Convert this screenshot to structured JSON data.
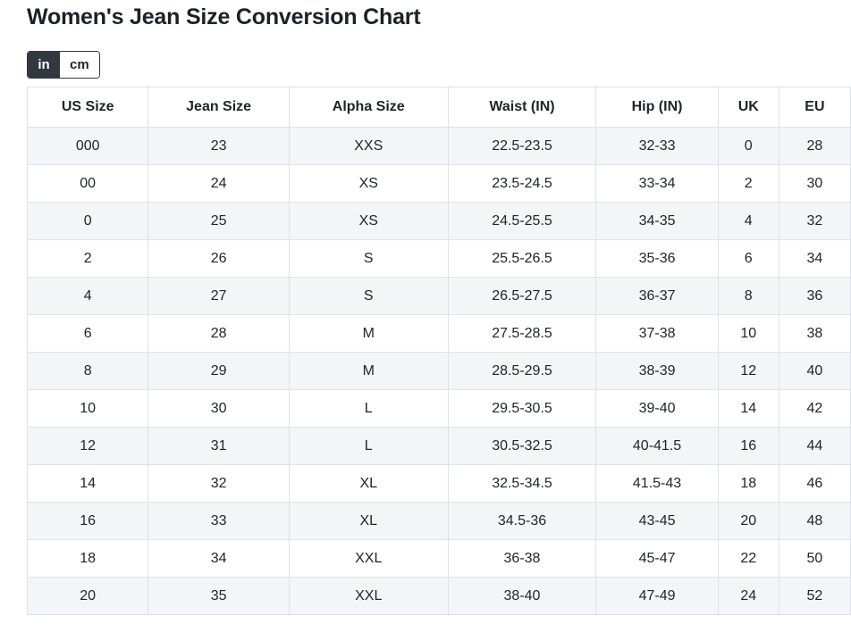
{
  "title": "Women's Jean Size Conversion Chart",
  "unit_toggle": {
    "in_label": "in",
    "cm_label": "cm",
    "selected": "in"
  },
  "table": {
    "columns": [
      "US Size",
      "Jean Size",
      "Alpha Size",
      "Waist (IN)",
      "Hip (IN)",
      "UK",
      "EU"
    ],
    "column_widths_pct": [
      14.7,
      17.1,
      19.3,
      18.0,
      14.8,
      7.4,
      8.7
    ],
    "rows": [
      [
        "000",
        "23",
        "XXS",
        "22.5-23.5",
        "32-33",
        "0",
        "28"
      ],
      [
        "00",
        "24",
        "XS",
        "23.5-24.5",
        "33-34",
        "2",
        "30"
      ],
      [
        "0",
        "25",
        "XS",
        "24.5-25.5",
        "34-35",
        "4",
        "32"
      ],
      [
        "2",
        "26",
        "S",
        "25.5-26.5",
        "35-36",
        "6",
        "34"
      ],
      [
        "4",
        "27",
        "S",
        "26.5-27.5",
        "36-37",
        "8",
        "36"
      ],
      [
        "6",
        "28",
        "M",
        "27.5-28.5",
        "37-38",
        "10",
        "38"
      ],
      [
        "8",
        "29",
        "M",
        "28.5-29.5",
        "38-39",
        "12",
        "40"
      ],
      [
        "10",
        "30",
        "L",
        "29.5-30.5",
        "39-40",
        "14",
        "42"
      ],
      [
        "12",
        "31",
        "L",
        "30.5-32.5",
        "40-41.5",
        "16",
        "44"
      ],
      [
        "14",
        "32",
        "XL",
        "32.5-34.5",
        "41.5-43",
        "18",
        "46"
      ],
      [
        "16",
        "33",
        "XL",
        "34.5-36",
        "43-45",
        "20",
        "48"
      ],
      [
        "18",
        "34",
        "XXL",
        "36-38",
        "45-47",
        "22",
        "50"
      ],
      [
        "20",
        "35",
        "XXL",
        "38-40",
        "47-49",
        "24",
        "52"
      ]
    ]
  },
  "chart_data": {
    "type": "table",
    "title": "Women's Jean Size Conversion Chart",
    "columns": [
      "US Size",
      "Jean Size",
      "Alpha Size",
      "Waist (IN)",
      "Hip (IN)",
      "UK",
      "EU"
    ],
    "rows": [
      [
        "000",
        "23",
        "XXS",
        "22.5-23.5",
        "32-33",
        "0",
        "28"
      ],
      [
        "00",
        "24",
        "XS",
        "23.5-24.5",
        "33-34",
        "2",
        "30"
      ],
      [
        "0",
        "25",
        "XS",
        "24.5-25.5",
        "34-35",
        "4",
        "32"
      ],
      [
        "2",
        "26",
        "S",
        "25.5-26.5",
        "35-36",
        "6",
        "34"
      ],
      [
        "4",
        "27",
        "S",
        "26.5-27.5",
        "36-37",
        "8",
        "36"
      ],
      [
        "6",
        "28",
        "M",
        "27.5-28.5",
        "37-38",
        "10",
        "38"
      ],
      [
        "8",
        "29",
        "M",
        "28.5-29.5",
        "38-39",
        "12",
        "40"
      ],
      [
        "10",
        "30",
        "L",
        "29.5-30.5",
        "39-40",
        "14",
        "42"
      ],
      [
        "12",
        "31",
        "L",
        "30.5-32.5",
        "40-41.5",
        "16",
        "44"
      ],
      [
        "14",
        "32",
        "XL",
        "32.5-34.5",
        "41.5-43",
        "18",
        "46"
      ],
      [
        "16",
        "33",
        "XL",
        "34.5-36",
        "43-45",
        "20",
        "48"
      ],
      [
        "18",
        "34",
        "XXL",
        "36-38",
        "45-47",
        "22",
        "50"
      ],
      [
        "20",
        "35",
        "XXL",
        "38-40",
        "47-49",
        "24",
        "52"
      ]
    ]
  },
  "colors": {
    "text": "#212529",
    "title": "#1d2127",
    "border": "#dee2e6",
    "stripe": "#f4f5f6",
    "toggle_active_bg": "#32383f",
    "toggle_active_text": "#ffffff",
    "background": "#ffffff"
  }
}
